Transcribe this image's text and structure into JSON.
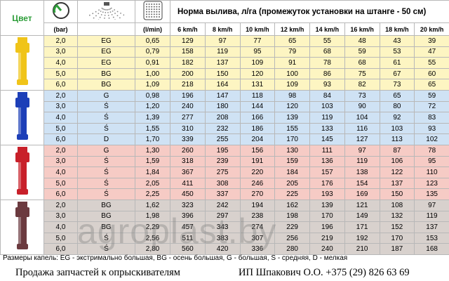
{
  "header": {
    "color_label": "Цвет",
    "title": "Норма вылива, л/га (промежуток установки на штанге - 50 см)",
    "unit_bar": "(bar)",
    "unit_lmin": "(l/min)",
    "speeds": [
      "6 km/h",
      "8 km/h",
      "10 km/h",
      "12 km/h",
      "14 km/h",
      "16 km/h",
      "18 km/h",
      "20 km/h"
    ]
  },
  "groups": [
    {
      "background": "#fdf5c2",
      "nozzle": "#f0c419",
      "rows": [
        [
          "2,0",
          "EG",
          "0,65",
          "129",
          "97",
          "77",
          "65",
          "55",
          "48",
          "43",
          "39"
        ],
        [
          "3,0",
          "EG",
          "0,79",
          "158",
          "119",
          "95",
          "79",
          "68",
          "59",
          "53",
          "47"
        ],
        [
          "4,0",
          "EG",
          "0,91",
          "182",
          "137",
          "109",
          "91",
          "78",
          "68",
          "61",
          "55"
        ],
        [
          "5,0",
          "BG",
          "1,00",
          "200",
          "150",
          "120",
          "100",
          "86",
          "75",
          "67",
          "60"
        ],
        [
          "6,0",
          "BG",
          "1,09",
          "218",
          "164",
          "131",
          "109",
          "93",
          "82",
          "73",
          "65"
        ]
      ]
    },
    {
      "background": "#cfe2f4",
      "nozzle": "#1d3fb8",
      "rows": [
        [
          "2,0",
          "G",
          "0,98",
          "196",
          "147",
          "118",
          "98",
          "84",
          "73",
          "65",
          "59"
        ],
        [
          "3,0",
          "Ś",
          "1,20",
          "240",
          "180",
          "144",
          "120",
          "103",
          "90",
          "80",
          "72"
        ],
        [
          "4,0",
          "Ś",
          "1,39",
          "277",
          "208",
          "166",
          "139",
          "119",
          "104",
          "92",
          "83"
        ],
        [
          "5,0",
          "Ś",
          "1,55",
          "310",
          "232",
          "186",
          "155",
          "133",
          "116",
          "103",
          "93"
        ],
        [
          "6,0",
          "D",
          "1,70",
          "339",
          "255",
          "204",
          "170",
          "145",
          "127",
          "113",
          "102"
        ]
      ]
    },
    {
      "background": "#f6cbc5",
      "nozzle": "#c8202a",
      "rows": [
        [
          "2,0",
          "G",
          "1,30",
          "260",
          "195",
          "156",
          "130",
          "111",
          "97",
          "87",
          "78"
        ],
        [
          "3,0",
          "Ś",
          "1,59",
          "318",
          "239",
          "191",
          "159",
          "136",
          "119",
          "106",
          "95"
        ],
        [
          "4,0",
          "Ś",
          "1,84",
          "367",
          "275",
          "220",
          "184",
          "157",
          "138",
          "122",
          "110"
        ],
        [
          "5,0",
          "Ś",
          "2,05",
          "411",
          "308",
          "246",
          "205",
          "176",
          "154",
          "137",
          "123"
        ],
        [
          "6,0",
          "Ś",
          "2,25",
          "450",
          "337",
          "270",
          "225",
          "193",
          "169",
          "150",
          "135"
        ]
      ]
    },
    {
      "background": "#d8d1cd",
      "nozzle": "#6b3a3f",
      "rows": [
        [
          "2,0",
          "BG",
          "1,62",
          "323",
          "242",
          "194",
          "162",
          "139",
          "121",
          "108",
          "97"
        ],
        [
          "3,0",
          "BG",
          "1,98",
          "396",
          "297",
          "238",
          "198",
          "170",
          "149",
          "132",
          "119"
        ],
        [
          "4,0",
          "BG",
          "2,29",
          "457",
          "343",
          "274",
          "229",
          "196",
          "171",
          "152",
          "137"
        ],
        [
          "5,0",
          "Ś",
          "2,56",
          "511",
          "383",
          "307",
          "256",
          "219",
          "192",
          "170",
          "153"
        ],
        [
          "6,0",
          "Ś",
          "2,80",
          "560",
          "420",
          "336",
          "280",
          "240",
          "210",
          "187",
          "168"
        ]
      ]
    }
  ],
  "legend": "Размеры капель: EG - экстримально большая, BG - осень большая, G - большая, S - средняя, D - мелкая",
  "footer": {
    "left": "Продажа запчастей к опрыскивателям",
    "right": "ИП Шпакович О.О.  +375 (29) 826 63 69"
  },
  "watermark": "agroplast.by"
}
